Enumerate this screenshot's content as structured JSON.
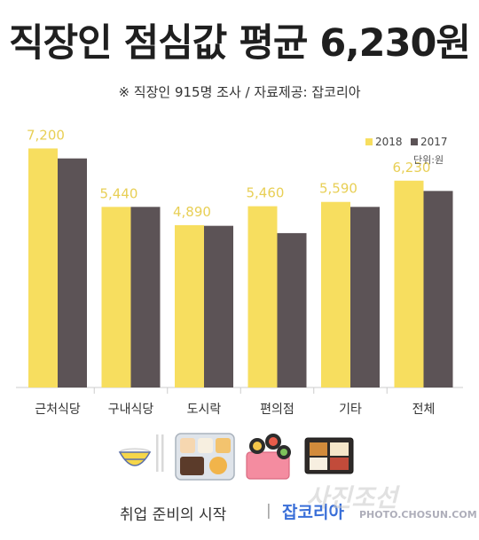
{
  "title": "직장인 점심값 평균 6,230원",
  "subtitle": "※ 직장인 915명 조사 / 자료제공: 잡코리아",
  "unit_label": "단위:원",
  "footer": {
    "text": "취업 준비의 시작",
    "separator": "|",
    "brand": "잡코리아"
  },
  "watermark": {
    "text": "사진조선",
    "url": "PHOTO.CHOSUN.COM"
  },
  "colors": {
    "series_2018": "#f7de5f",
    "series_2017": "#5c5356",
    "value_label": "#e8cf55",
    "axis": "#cccccc"
  },
  "chart_data": {
    "type": "bar",
    "categories": [
      "근처식당",
      "구내식당",
      "도시락",
      "편의점",
      "기타",
      "전체"
    ],
    "series": [
      {
        "name": "2018",
        "values": [
          7200,
          5440,
          4890,
          5460,
          5590,
          6230
        ]
      },
      {
        "name": "2017",
        "values": [
          6900,
          5440,
          4870,
          4650,
          5440,
          5920
        ]
      }
    ],
    "data_labels": [
      "7,200",
      "5,440",
      "4,890",
      "5,460",
      "5,590",
      "6,230"
    ],
    "ylim": [
      0,
      8200
    ],
    "legend_position": "top-right",
    "grid": false
  }
}
